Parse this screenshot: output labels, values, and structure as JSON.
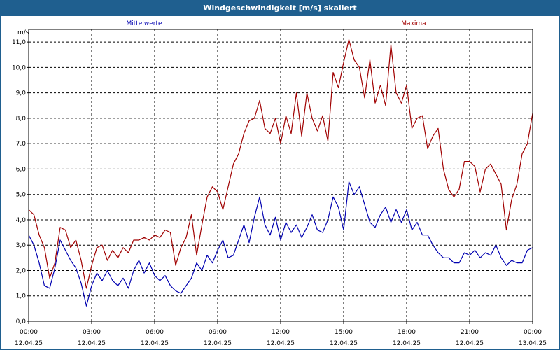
{
  "window": {
    "title": "Windgeschwindigkeit [m/s] skaliert"
  },
  "colors": {
    "title_bar": "#1f5f8f",
    "mean": "#0000b0",
    "max": "#a00000",
    "grid": "#000000"
  },
  "chart_data": {
    "type": "line",
    "title": "Windgeschwindigkeit [m/s] skaliert",
    "ylabel": "m/s",
    "ylim": [
      0,
      11.5
    ],
    "yticks": [
      "0,0",
      "1,0",
      "2,0",
      "3,0",
      "4,0",
      "5,0",
      "6,0",
      "7,0",
      "8,0",
      "9,0",
      "10,0",
      "11,0"
    ],
    "xlim_hours": [
      0,
      24
    ],
    "xticks": [
      {
        "time": "00:00",
        "date": "12.04.25"
      },
      {
        "time": "03:00",
        "date": "12.04.25"
      },
      {
        "time": "06:00",
        "date": "12.04.25"
      },
      {
        "time": "09:00",
        "date": "12.04.25"
      },
      {
        "time": "12:00",
        "date": "12.04.25"
      },
      {
        "time": "15:00",
        "date": "12.04.25"
      },
      {
        "time": "18:00",
        "date": "12.04.25"
      },
      {
        "time": "21:00",
        "date": "12.04.25"
      },
      {
        "time": "00:00",
        "date": "13.04.25"
      }
    ],
    "grid": true,
    "legend": "top",
    "series": [
      {
        "name": "Mittelwerte",
        "color": "#0000b0",
        "x": [
          0.0,
          0.25,
          0.5,
          0.75,
          1.0,
          1.25,
          1.5,
          1.75,
          2.0,
          2.25,
          2.5,
          2.75,
          3.0,
          3.25,
          3.5,
          3.75,
          4.0,
          4.25,
          4.5,
          4.75,
          5.0,
          5.25,
          5.5,
          5.75,
          6.0,
          6.25,
          6.5,
          6.75,
          7.0,
          7.25,
          7.5,
          7.75,
          8.0,
          8.25,
          8.5,
          8.75,
          9.0,
          9.25,
          9.5,
          9.75,
          10.0,
          10.25,
          10.5,
          10.75,
          11.0,
          11.25,
          11.5,
          11.75,
          12.0,
          12.25,
          12.5,
          12.75,
          13.0,
          13.25,
          13.5,
          13.75,
          14.0,
          14.25,
          14.5,
          14.75,
          15.0,
          15.25,
          15.5,
          15.75,
          16.0,
          16.25,
          16.5,
          16.75,
          17.0,
          17.25,
          17.5,
          17.75,
          18.0,
          18.25,
          18.5,
          18.75,
          19.0,
          19.25,
          19.5,
          19.75,
          20.0,
          20.25,
          20.5,
          20.75,
          21.0,
          21.25,
          21.5,
          21.75,
          22.0,
          22.25,
          22.5,
          22.75,
          23.0,
          23.25,
          23.5,
          23.75,
          24.0
        ],
        "values": [
          3.4,
          3.0,
          2.3,
          1.4,
          1.3,
          2.1,
          3.2,
          2.8,
          2.4,
          2.1,
          1.5,
          0.6,
          1.4,
          1.9,
          1.6,
          2.0,
          1.6,
          1.4,
          1.7,
          1.3,
          2.0,
          2.4,
          1.9,
          2.3,
          1.8,
          1.6,
          1.8,
          1.4,
          1.2,
          1.1,
          1.4,
          1.7,
          2.3,
          2.0,
          2.6,
          2.3,
          2.8,
          3.2,
          2.5,
          2.6,
          3.2,
          3.8,
          3.1,
          4.1,
          4.9,
          3.8,
          3.4,
          4.1,
          3.2,
          3.9,
          3.5,
          3.8,
          3.3,
          3.7,
          4.2,
          3.6,
          3.5,
          4.0,
          4.9,
          4.5,
          3.6,
          5.5,
          5.0,
          5.3,
          4.6,
          3.9,
          3.7,
          4.2,
          4.5,
          3.9,
          4.4,
          3.9,
          4.4,
          3.6,
          3.9,
          3.4,
          3.4,
          3.0,
          2.7,
          2.5,
          2.5,
          2.3,
          2.3,
          2.7,
          2.6,
          2.8,
          2.5,
          2.7,
          2.6,
          3.0,
          2.5,
          2.2,
          2.4,
          2.3,
          2.3,
          2.8,
          2.9
        ]
      },
      {
        "name": "Maxima",
        "color": "#a00000",
        "x": [
          0.0,
          0.25,
          0.5,
          0.75,
          1.0,
          1.25,
          1.5,
          1.75,
          2.0,
          2.25,
          2.5,
          2.75,
          3.0,
          3.25,
          3.5,
          3.75,
          4.0,
          4.25,
          4.5,
          4.75,
          5.0,
          5.25,
          5.5,
          5.75,
          6.0,
          6.25,
          6.5,
          6.75,
          7.0,
          7.25,
          7.5,
          7.75,
          8.0,
          8.25,
          8.5,
          8.75,
          9.0,
          9.25,
          9.5,
          9.75,
          10.0,
          10.25,
          10.5,
          10.75,
          11.0,
          11.25,
          11.5,
          11.75,
          12.0,
          12.25,
          12.5,
          12.75,
          13.0,
          13.25,
          13.5,
          13.75,
          14.0,
          14.25,
          14.5,
          14.75,
          15.0,
          15.25,
          15.5,
          15.75,
          16.0,
          16.25,
          16.5,
          16.75,
          17.0,
          17.25,
          17.5,
          17.75,
          18.0,
          18.25,
          18.5,
          18.75,
          19.0,
          19.25,
          19.5,
          19.75,
          20.0,
          20.25,
          20.5,
          20.75,
          21.0,
          21.25,
          21.5,
          21.75,
          22.0,
          22.25,
          22.5,
          22.75,
          23.0,
          23.25,
          23.5,
          23.75,
          24.0
        ],
        "values": [
          4.4,
          4.2,
          3.4,
          2.9,
          1.7,
          2.3,
          3.7,
          3.6,
          2.9,
          3.2,
          2.4,
          1.3,
          2.2,
          2.9,
          3.0,
          2.4,
          2.8,
          2.5,
          2.9,
          2.7,
          3.2,
          3.2,
          3.3,
          3.2,
          3.4,
          3.3,
          3.6,
          3.5,
          2.2,
          2.9,
          3.3,
          4.2,
          2.6,
          3.8,
          4.9,
          5.3,
          5.1,
          4.4,
          5.3,
          6.2,
          6.6,
          7.4,
          7.9,
          8.0,
          8.7,
          7.6,
          7.4,
          8.0,
          7.0,
          8.1,
          7.4,
          9.0,
          7.3,
          9.0,
          8.0,
          7.5,
          8.1,
          7.1,
          9.8,
          9.2,
          10.2,
          11.1,
          10.3,
          10.0,
          8.8,
          10.3,
          8.6,
          9.3,
          8.5,
          10.9,
          9.0,
          8.6,
          9.3,
          7.6,
          8.0,
          8.1,
          6.8,
          7.3,
          7.6,
          6.0,
          5.2,
          4.9,
          5.2,
          6.3,
          6.3,
          6.1,
          5.1,
          6.0,
          6.2,
          5.8,
          5.4,
          3.6,
          4.8,
          5.4,
          6.6,
          7.0,
          8.2
        ]
      }
    ]
  }
}
